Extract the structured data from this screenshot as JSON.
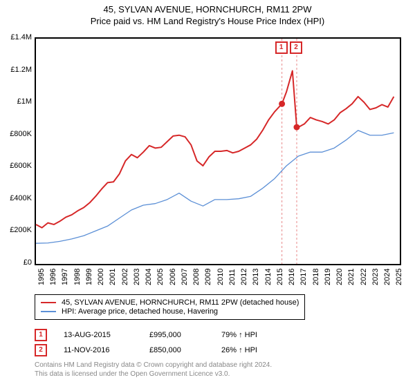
{
  "title": "45, SYLVAN AVENUE, HORNCHURCH, RM11 2PW",
  "subtitle": "Price paid vs. HM Land Registry's House Price Index (HPI)",
  "chart": {
    "type": "line",
    "background_color": "#ffffff",
    "border_color": "#000000",
    "x_years": [
      1995,
      1996,
      1997,
      1998,
      1999,
      2000,
      2001,
      2002,
      2003,
      2004,
      2005,
      2006,
      2007,
      2008,
      2009,
      2010,
      2011,
      2012,
      2013,
      2014,
      2015,
      2016,
      2017,
      2018,
      2019,
      2020,
      2021,
      2022,
      2023,
      2024,
      2025
    ],
    "xlim": [
      1995,
      2025.5
    ],
    "ylim": [
      0,
      1400000
    ],
    "ytick_step": 200000,
    "ytick_labels": [
      "£0",
      "£200K",
      "£400K",
      "£600K",
      "£800K",
      "£1M",
      "£1.2M",
      "£1.4M"
    ],
    "series": [
      {
        "name": "price_paid",
        "label": "45, SYLVAN AVENUE, HORNCHURCH, RM11 2PW (detached house)",
        "color": "#d62728",
        "line_width": 2,
        "data": [
          [
            1995,
            245000
          ],
          [
            1995.5,
            225000
          ],
          [
            1996,
            255000
          ],
          [
            1996.5,
            245000
          ],
          [
            1997,
            265000
          ],
          [
            1997.5,
            290000
          ],
          [
            1998,
            305000
          ],
          [
            1998.5,
            330000
          ],
          [
            1999,
            350000
          ],
          [
            1999.5,
            380000
          ],
          [
            2000,
            420000
          ],
          [
            2000.5,
            465000
          ],
          [
            2001,
            505000
          ],
          [
            2001.5,
            510000
          ],
          [
            2002,
            560000
          ],
          [
            2002.5,
            640000
          ],
          [
            2003,
            680000
          ],
          [
            2003.5,
            660000
          ],
          [
            2004,
            695000
          ],
          [
            2004.5,
            735000
          ],
          [
            2005,
            720000
          ],
          [
            2005.5,
            725000
          ],
          [
            2006,
            760000
          ],
          [
            2006.5,
            795000
          ],
          [
            2007,
            800000
          ],
          [
            2007.5,
            790000
          ],
          [
            2008,
            740000
          ],
          [
            2008.5,
            640000
          ],
          [
            2009,
            610000
          ],
          [
            2009.5,
            665000
          ],
          [
            2010,
            700000
          ],
          [
            2010.5,
            700000
          ],
          [
            2011,
            705000
          ],
          [
            2011.5,
            690000
          ],
          [
            2012,
            700000
          ],
          [
            2012.5,
            720000
          ],
          [
            2013,
            740000
          ],
          [
            2013.5,
            775000
          ],
          [
            2014,
            830000
          ],
          [
            2014.5,
            895000
          ],
          [
            2015,
            945000
          ],
          [
            2015.62,
            995000
          ],
          [
            2016,
            1070000
          ],
          [
            2016.5,
            1200000
          ],
          [
            2016.86,
            850000
          ],
          [
            2017,
            850000
          ],
          [
            2017.5,
            870000
          ],
          [
            2018,
            910000
          ],
          [
            2018.5,
            895000
          ],
          [
            2019,
            885000
          ],
          [
            2019.5,
            870000
          ],
          [
            2020,
            895000
          ],
          [
            2020.5,
            940000
          ],
          [
            2021,
            965000
          ],
          [
            2021.5,
            995000
          ],
          [
            2022,
            1040000
          ],
          [
            2022.5,
            1005000
          ],
          [
            2023,
            960000
          ],
          [
            2023.5,
            970000
          ],
          [
            2024,
            990000
          ],
          [
            2024.5,
            975000
          ],
          [
            2025,
            1040000
          ]
        ]
      },
      {
        "name": "hpi",
        "label": "HPI: Average price, detached house, Havering",
        "color": "#5b8fd6",
        "line_width": 1.3,
        "data": [
          [
            1995,
            128000
          ],
          [
            1996,
            130000
          ],
          [
            1997,
            140000
          ],
          [
            1998,
            155000
          ],
          [
            1999,
            175000
          ],
          [
            2000,
            205000
          ],
          [
            2001,
            235000
          ],
          [
            2002,
            285000
          ],
          [
            2003,
            335000
          ],
          [
            2004,
            365000
          ],
          [
            2005,
            375000
          ],
          [
            2006,
            400000
          ],
          [
            2007,
            440000
          ],
          [
            2008,
            390000
          ],
          [
            2009,
            360000
          ],
          [
            2010,
            400000
          ],
          [
            2011,
            400000
          ],
          [
            2012,
            405000
          ],
          [
            2013,
            420000
          ],
          [
            2014,
            470000
          ],
          [
            2015,
            530000
          ],
          [
            2016,
            610000
          ],
          [
            2017,
            670000
          ],
          [
            2018,
            695000
          ],
          [
            2019,
            695000
          ],
          [
            2020,
            720000
          ],
          [
            2021,
            770000
          ],
          [
            2022,
            830000
          ],
          [
            2023,
            800000
          ],
          [
            2024,
            800000
          ],
          [
            2025,
            815000
          ]
        ]
      }
    ],
    "event_markers": [
      {
        "id": "1",
        "x": 2015.62,
        "y": 995000,
        "color": "#d62728"
      },
      {
        "id": "2",
        "x": 2016.86,
        "y": 850000,
        "color": "#d62728"
      }
    ]
  },
  "legend": {
    "items": [
      {
        "color": "#d62728",
        "label": "45, SYLVAN AVENUE, HORNCHURCH, RM11 2PW (detached house)"
      },
      {
        "color": "#5b8fd6",
        "label": "HPI: Average price, detached house, Havering"
      }
    ]
  },
  "events_table": [
    {
      "id": "1",
      "color": "#d62728",
      "date": "13-AUG-2015",
      "price": "£995,000",
      "delta": "79% ↑ HPI"
    },
    {
      "id": "2",
      "color": "#d62728",
      "date": "11-NOV-2016",
      "price": "£850,000",
      "delta": "26% ↑ HPI"
    }
  ],
  "footer_line1": "Contains HM Land Registry data © Crown copyright and database right 2024.",
  "footer_line2": "This data is licensed under the Open Government Licence v3.0."
}
